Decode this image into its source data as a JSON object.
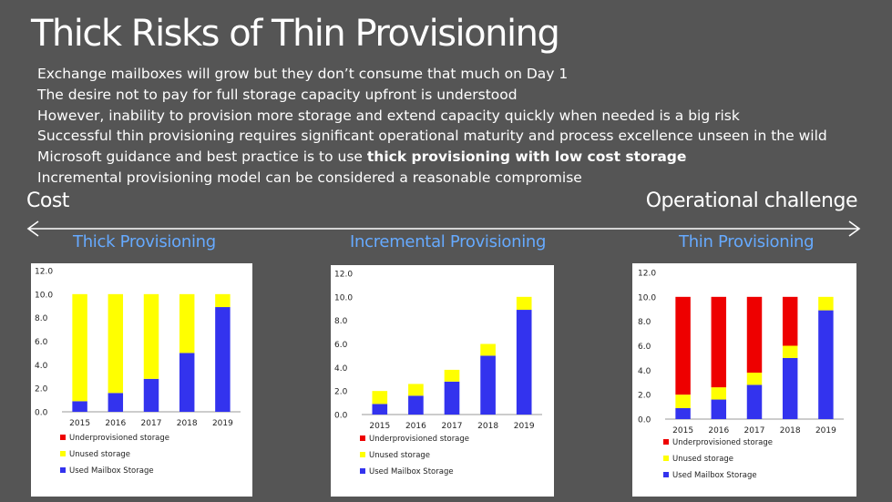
{
  "title": "Thick Risks of Thin Provisioning",
  "bullets": [
    "Exchange mailboxes will grow but they don’t consume that much on Day 1",
    "The desire not to pay for full storage capacity upfront is understood",
    "However, inability to provision more storage and extend capacity quickly when needed is a big risk",
    "Successful thin provisioning requires significant operational maturity and process excellence unseen in the wild",
    "Microsoft guidance and best practice is to use ",
    "thick provisioning with low cost storage",
    "Incremental provisioning model can be considered a reasonable compromise"
  ],
  "axis": {
    "left": "Cost",
    "right": "Operational challenge"
  },
  "colors": {
    "used": "#3333ee",
    "unused": "#ffff00",
    "under": "#ee0000",
    "accent": "#66aaff",
    "background": "#555555"
  },
  "legend": [
    "Underprovisioned storage",
    "Unused storage",
    "Used Mailbox Storage"
  ],
  "chart_data": [
    {
      "type": "bar",
      "title": "Thick Provisioning",
      "categories": [
        "2015",
        "2016",
        "2017",
        "2018",
        "2019"
      ],
      "ylim": [
        0,
        12
      ],
      "yticks": [
        "12.0",
        "10.0",
        "8.0",
        "6.0",
        "4.0",
        "2.0",
        "0.0"
      ],
      "series": [
        {
          "name": "Used Mailbox Storage",
          "values": [
            0.9,
            1.6,
            2.8,
            5.0,
            8.9
          ]
        },
        {
          "name": "Unused storage",
          "values": [
            9.1,
            8.4,
            7.2,
            5.0,
            1.1
          ]
        },
        {
          "name": "Underprovisioned storage",
          "values": [
            0,
            0,
            0,
            0,
            0
          ]
        }
      ]
    },
    {
      "type": "bar",
      "title": "Incremental Provisioning",
      "categories": [
        "2015",
        "2016",
        "2017",
        "2018",
        "2019"
      ],
      "ylim": [
        0,
        12
      ],
      "yticks": [
        "12.0",
        "10.0",
        "8.0",
        "6.0",
        "4.0",
        "2.0",
        "0.0"
      ],
      "series": [
        {
          "name": "Used Mailbox Storage",
          "values": [
            0.9,
            1.6,
            2.8,
            5.0,
            8.9
          ]
        },
        {
          "name": "Unused storage",
          "values": [
            1.1,
            1.0,
            1.0,
            1.0,
            1.1
          ]
        },
        {
          "name": "Underprovisioned storage",
          "values": [
            0,
            0,
            0,
            0,
            0
          ]
        }
      ]
    },
    {
      "type": "bar",
      "title": "Thin Provisioning",
      "categories": [
        "2015",
        "2016",
        "2017",
        "2018",
        "2019"
      ],
      "ylim": [
        0,
        12
      ],
      "yticks": [
        "12.0",
        "10.0",
        "8.0",
        "6.0",
        "4.0",
        "2.0",
        "0.0"
      ],
      "series": [
        {
          "name": "Used Mailbox Storage",
          "values": [
            0.9,
            1.6,
            2.8,
            5.0,
            8.9
          ]
        },
        {
          "name": "Unused storage",
          "values": [
            1.1,
            1.0,
            1.0,
            1.0,
            1.1
          ]
        },
        {
          "name": "Underprovisioned storage",
          "values": [
            8.0,
            7.4,
            6.2,
            4.0,
            0
          ]
        }
      ]
    }
  ]
}
